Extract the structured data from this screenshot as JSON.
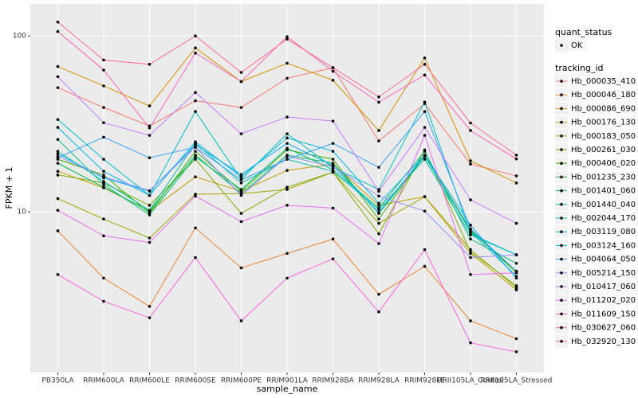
{
  "chart_data": {
    "type": "line",
    "log_y": true,
    "grid": true,
    "x_label": "sample_name",
    "y_label": "FPKM + 1",
    "shape_legend": {
      "title": "quant_status",
      "labels": [
        "OK"
      ]
    },
    "legend_title": "tracking_id",
    "categories": [
      "PB350LA",
      "RRIM600LA",
      "RRIM600LE",
      "RRIM600SE",
      "RRIM600PE",
      "RRIM901LA",
      "RRIM928BA",
      "RRIM928LA",
      "RRIM928LE",
      "RRII105LA_Control",
      "RRII105LA_Stressed"
    ],
    "ylim": [
      1.22,
      152
    ],
    "yticks": [
      10,
      100
    ],
    "series": [
      {
        "name": "Hb_000035_410",
        "color": "#F8766D",
        "values": [
          50.8,
          39.2,
          30.8,
          42.8,
          39.2,
          57.5,
          66,
          25.3,
          41.2,
          18.7,
          16.0
        ]
      },
      {
        "name": "Hb_000046_180",
        "color": "#EA8331",
        "values": [
          7.8,
          4.2,
          2.9,
          8.1,
          4.8,
          5.8,
          7.0,
          3.4,
          4.9,
          2.4,
          1.9
        ]
      },
      {
        "name": "Hb_000086_690",
        "color": "#D89000",
        "values": [
          67,
          52,
          40,
          85.5,
          55,
          70,
          56,
          29,
          75,
          19.5,
          14.6
        ]
      },
      {
        "name": "Hb_000176_130",
        "color": "#C09B00",
        "values": [
          17,
          13.7,
          10.1,
          15.8,
          13.1,
          17.2,
          18.7,
          10.9,
          12.2,
          5.8,
          3.6
        ]
      },
      {
        "name": "Hb_000183_050",
        "color": "#A3A500",
        "values": [
          11.9,
          9.1,
          7.1,
          12.6,
          12.7,
          13.4,
          16.8,
          8.6,
          12.2,
          6.1,
          3.7
        ]
      },
      {
        "name": "Hb_000261_030",
        "color": "#7CAE00",
        "values": [
          16.2,
          14.6,
          10.9,
          19.9,
          9.8,
          13.8,
          16.8,
          7.5,
          22.5,
          5.9,
          3.8
        ]
      },
      {
        "name": "Hb_000406_020",
        "color": "#39B600",
        "values": [
          19.9,
          16.2,
          9.8,
          22.1,
          13.1,
          22.5,
          19.9,
          9.1,
          21.0,
          7.9,
          4.5
        ]
      },
      {
        "name": "Hb_001235_230",
        "color": "#00BB4E",
        "values": [
          18.9,
          13.8,
          10.1,
          21.0,
          12.7,
          21.0,
          18.9,
          9.8,
          20.7,
          7.8,
          4.6
        ]
      },
      {
        "name": "Hb_001401_060",
        "color": "#00BF7D",
        "values": [
          25.8,
          14.3,
          9.6,
          20.5,
          13.4,
          23.0,
          17.4,
          10.5,
          22.1,
          7.0,
          5.1
        ]
      },
      {
        "name": "Hb_001440_040",
        "color": "#00C1A3",
        "values": [
          22.1,
          14.9,
          10.2,
          24.5,
          14.6,
          19.9,
          17.0,
          10.3,
          19.9,
          7.4,
          5.7
        ]
      },
      {
        "name": "Hb_002044_170",
        "color": "#00BFC4",
        "values": [
          33.5,
          19.9,
          12.4,
          37.2,
          15.3,
          27.8,
          17.9,
          13.4,
          42.1,
          7.5,
          5.7
        ]
      },
      {
        "name": "Hb_003119_080",
        "color": "#00BAE0",
        "values": [
          30.2,
          17.0,
          12.4,
          25.0,
          15.8,
          26.3,
          22.1,
          11.2,
          21.0,
          7.7,
          4.3
        ]
      },
      {
        "name": "Hb_003124_160",
        "color": "#00B0F6",
        "values": [
          21.4,
          15.6,
          13.1,
          24.0,
          16.3,
          24.5,
          18.3,
          9.9,
          21.0,
          8.4,
          4.2
        ]
      },
      {
        "name": "Hb_004064_050",
        "color": "#35A2FF",
        "values": [
          20.3,
          26.6,
          20.3,
          23.3,
          15.2,
          19.9,
          24.5,
          17.9,
          37.2,
          8.0,
          4.6
        ]
      },
      {
        "name": "Hb_005214_150",
        "color": "#9590FF",
        "values": [
          20.7,
          15.8,
          13.2,
          23.3,
          12.4,
          20.7,
          18.1,
          12.3,
          10.1,
          5.5,
          5.7
        ]
      },
      {
        "name": "Hb_010417_060",
        "color": "#C77CFF",
        "values": [
          58.7,
          32.1,
          27.2,
          47.7,
          27.8,
          34.6,
          32.8,
          13.1,
          30.2,
          11.7,
          8.6
        ]
      },
      {
        "name": "Hb_011202_020",
        "color": "#E76BF3",
        "values": [
          10.2,
          7.3,
          6.7,
          12.3,
          8.8,
          10.9,
          10.5,
          6.6,
          27.2,
          4.4,
          4.5
        ]
      },
      {
        "name": "Hb_011609_150",
        "color": "#FA62DB",
        "values": [
          4.4,
          3.1,
          2.5,
          5.5,
          2.4,
          4.2,
          5.4,
          2.7,
          6.1,
          1.8,
          1.6
        ]
      },
      {
        "name": "Hb_030627_060",
        "color": "#FF62BC",
        "values": [
          106,
          64,
          30,
          80,
          55,
          99,
          63,
          42,
          60,
          29,
          20
        ]
      },
      {
        "name": "Hb_032920_130",
        "color": "#FF6C90",
        "values": [
          120,
          73,
          69,
          100,
          62,
          96,
          66,
          45,
          69,
          32,
          21
        ]
      }
    ]
  }
}
